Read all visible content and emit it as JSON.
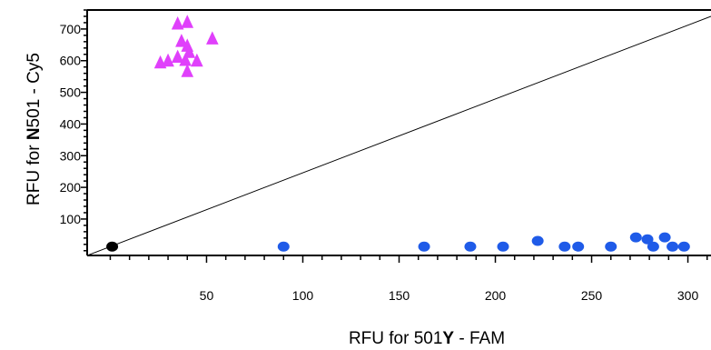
{
  "chart_data": {
    "type": "scatter",
    "title": "",
    "xlabel": {
      "parts": [
        "RFU for 501",
        "Y",
        " - FAM"
      ]
    },
    "ylabel": {
      "parts": [
        "RFU for ",
        "N",
        "501 - Cy5"
      ]
    },
    "xlim": [
      -12,
      312
    ],
    "ylim": [
      -15,
      760
    ],
    "x_ticks": [
      50,
      100,
      150,
      200,
      250,
      300
    ],
    "y_ticks": [
      100,
      200,
      300,
      400,
      500,
      600,
      700
    ],
    "grid": false,
    "legend": "none",
    "reference_line": {
      "x": [
        -12,
        312
      ],
      "y": [
        -15,
        740
      ],
      "color": "#000000"
    },
    "series": [
      {
        "marker": "triangle",
        "color": "#e040fb",
        "points": [
          {
            "x": 35,
            "y": 715
          },
          {
            "x": 40,
            "y": 720
          },
          {
            "x": 53,
            "y": 668
          },
          {
            "x": 37,
            "y": 660
          },
          {
            "x": 40,
            "y": 645
          },
          {
            "x": 41,
            "y": 625
          },
          {
            "x": 35,
            "y": 610
          },
          {
            "x": 30,
            "y": 598
          },
          {
            "x": 39,
            "y": 600
          },
          {
            "x": 45,
            "y": 598
          },
          {
            "x": 26,
            "y": 592
          },
          {
            "x": 40,
            "y": 565
          }
        ]
      },
      {
        "marker": "circle",
        "color": "#1f5be8",
        "points": [
          {
            "x": 90,
            "y": 13
          },
          {
            "x": 163,
            "y": 13
          },
          {
            "x": 187,
            "y": 13
          },
          {
            "x": 204,
            "y": 13
          },
          {
            "x": 222,
            "y": 31
          },
          {
            "x": 236,
            "y": 13
          },
          {
            "x": 243,
            "y": 13
          },
          {
            "x": 260,
            "y": 13
          },
          {
            "x": 273,
            "y": 42
          },
          {
            "x": 279,
            "y": 36
          },
          {
            "x": 282,
            "y": 13
          },
          {
            "x": 288,
            "y": 42
          },
          {
            "x": 292,
            "y": 13
          },
          {
            "x": 298,
            "y": 13
          }
        ]
      },
      {
        "marker": "circle",
        "color": "#000000",
        "points": [
          {
            "x": 1,
            "y": 13
          }
        ]
      }
    ]
  }
}
